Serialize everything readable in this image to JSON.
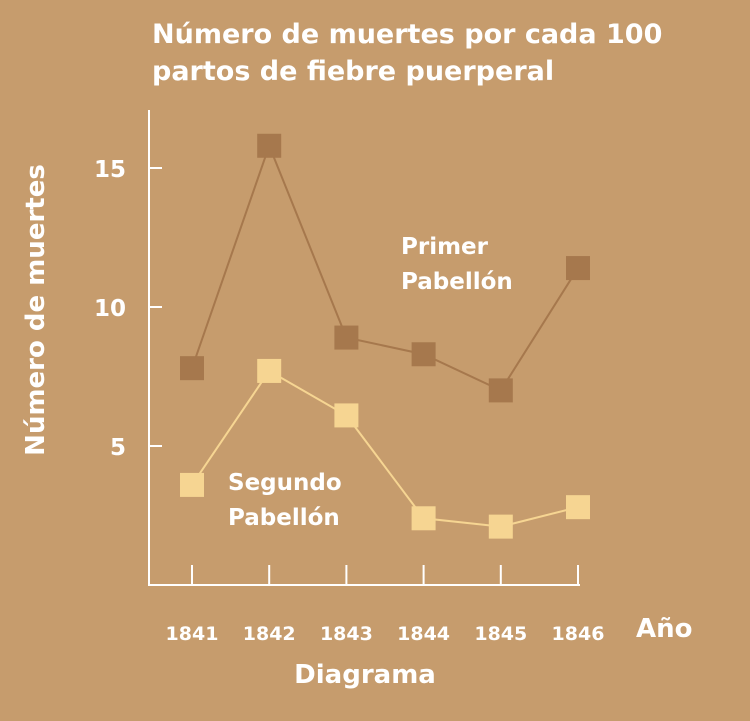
{
  "chart_data": {
    "type": "line",
    "title_line1": "Número de muertes por cada 100",
    "title_line2": "partos de fiebre puerperal",
    "xlabel": "Año",
    "ylabel": "Número de muertes",
    "caption": "Diagrama",
    "x": [
      "1841",
      "1842",
      "1843",
      "1844",
      "1845",
      "1846"
    ],
    "y_ticks": [
      "5",
      "10",
      "15"
    ],
    "ylim": [
      0,
      16.8
    ],
    "grid": false,
    "series": [
      {
        "name": "Primer Pabellón",
        "label_line1": "Primer",
        "label_line2": "Pabellón",
        "values": [
          7.8,
          15.8,
          8.9,
          8.3,
          7.0,
          11.4
        ],
        "color": "#a6784d"
      },
      {
        "name": "Segundo Pabellón",
        "label_line1": "Segundo",
        "label_line2": "Pabellón",
        "values": [
          3.6,
          7.7,
          6.1,
          2.4,
          2.1,
          2.8
        ],
        "color": "#f6d592"
      }
    ]
  }
}
